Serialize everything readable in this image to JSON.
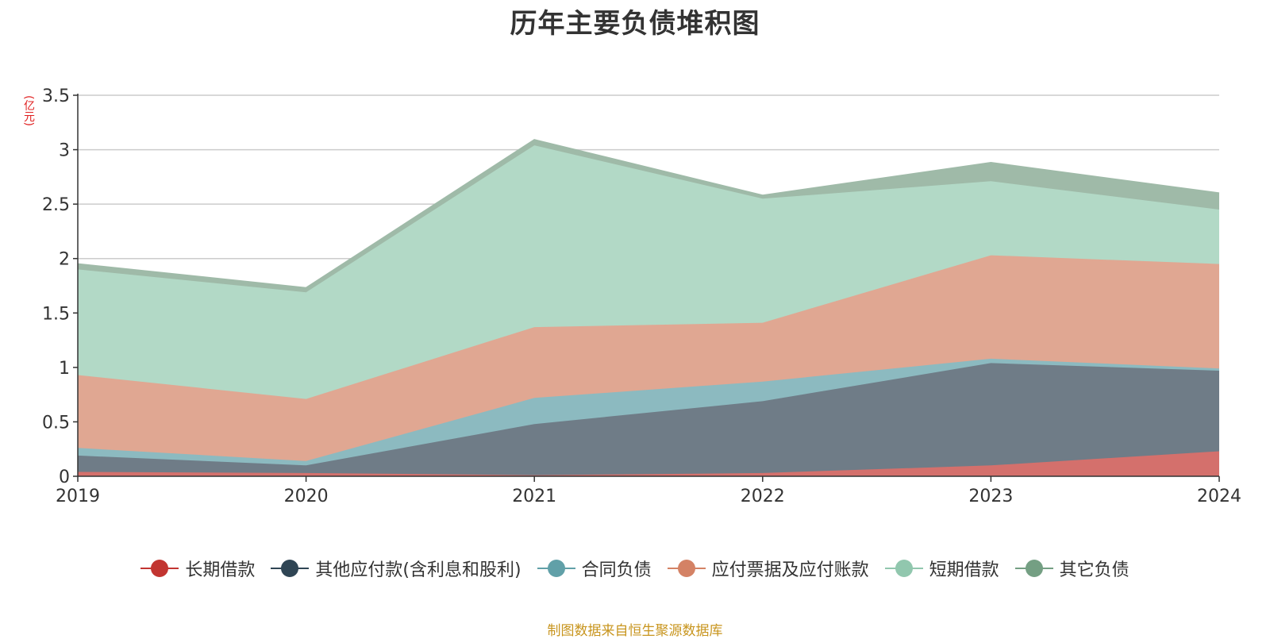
{
  "title": "历年主要负债堆积图",
  "source_note": "制图数据来自恒生聚源数据库",
  "chart_data": {
    "type": "area",
    "stacked": true,
    "title": "历年主要负债堆积图",
    "ylabel": "(亿元)",
    "xlabel": "",
    "x": [
      "2019",
      "2020",
      "2021",
      "2022",
      "2023",
      "2024"
    ],
    "ylim": [
      0,
      3.5
    ],
    "yticks": [
      "0",
      "0.5",
      "1",
      "1.5",
      "2",
      "2.5",
      "3",
      "3.5"
    ],
    "grid": true,
    "legend_position": "bottom",
    "series": [
      {
        "name": "长期借款",
        "color": "#c23531",
        "fill": "#d4706c",
        "values": [
          0.04,
          0.03,
          0.01,
          0.03,
          0.1,
          0.23
        ]
      },
      {
        "name": "其他应付款(含利息和股利)",
        "color": "#2f4554",
        "fill": "#6f7c87",
        "values": [
          0.15,
          0.07,
          0.47,
          0.66,
          0.94,
          0.74
        ]
      },
      {
        "name": "合同负债",
        "color": "#61a0a8",
        "fill": "#8cbac0",
        "values": [
          0.07,
          0.04,
          0.24,
          0.18,
          0.04,
          0.02
        ]
      },
      {
        "name": "应付票据及应付账款",
        "color": "#d48265",
        "fill": "#e0a792",
        "values": [
          0.67,
          0.57,
          0.65,
          0.54,
          0.95,
          0.96
        ]
      },
      {
        "name": "短期借款",
        "color": "#91c7ae",
        "fill": "#b2d9c6",
        "values": [
          0.97,
          0.98,
          1.67,
          1.14,
          0.68,
          0.5
        ]
      },
      {
        "name": "其它负债",
        "color": "#749f83",
        "fill": "#9fbaa8",
        "values": [
          0.05,
          0.04,
          0.05,
          0.03,
          0.17,
          0.15
        ]
      }
    ]
  }
}
